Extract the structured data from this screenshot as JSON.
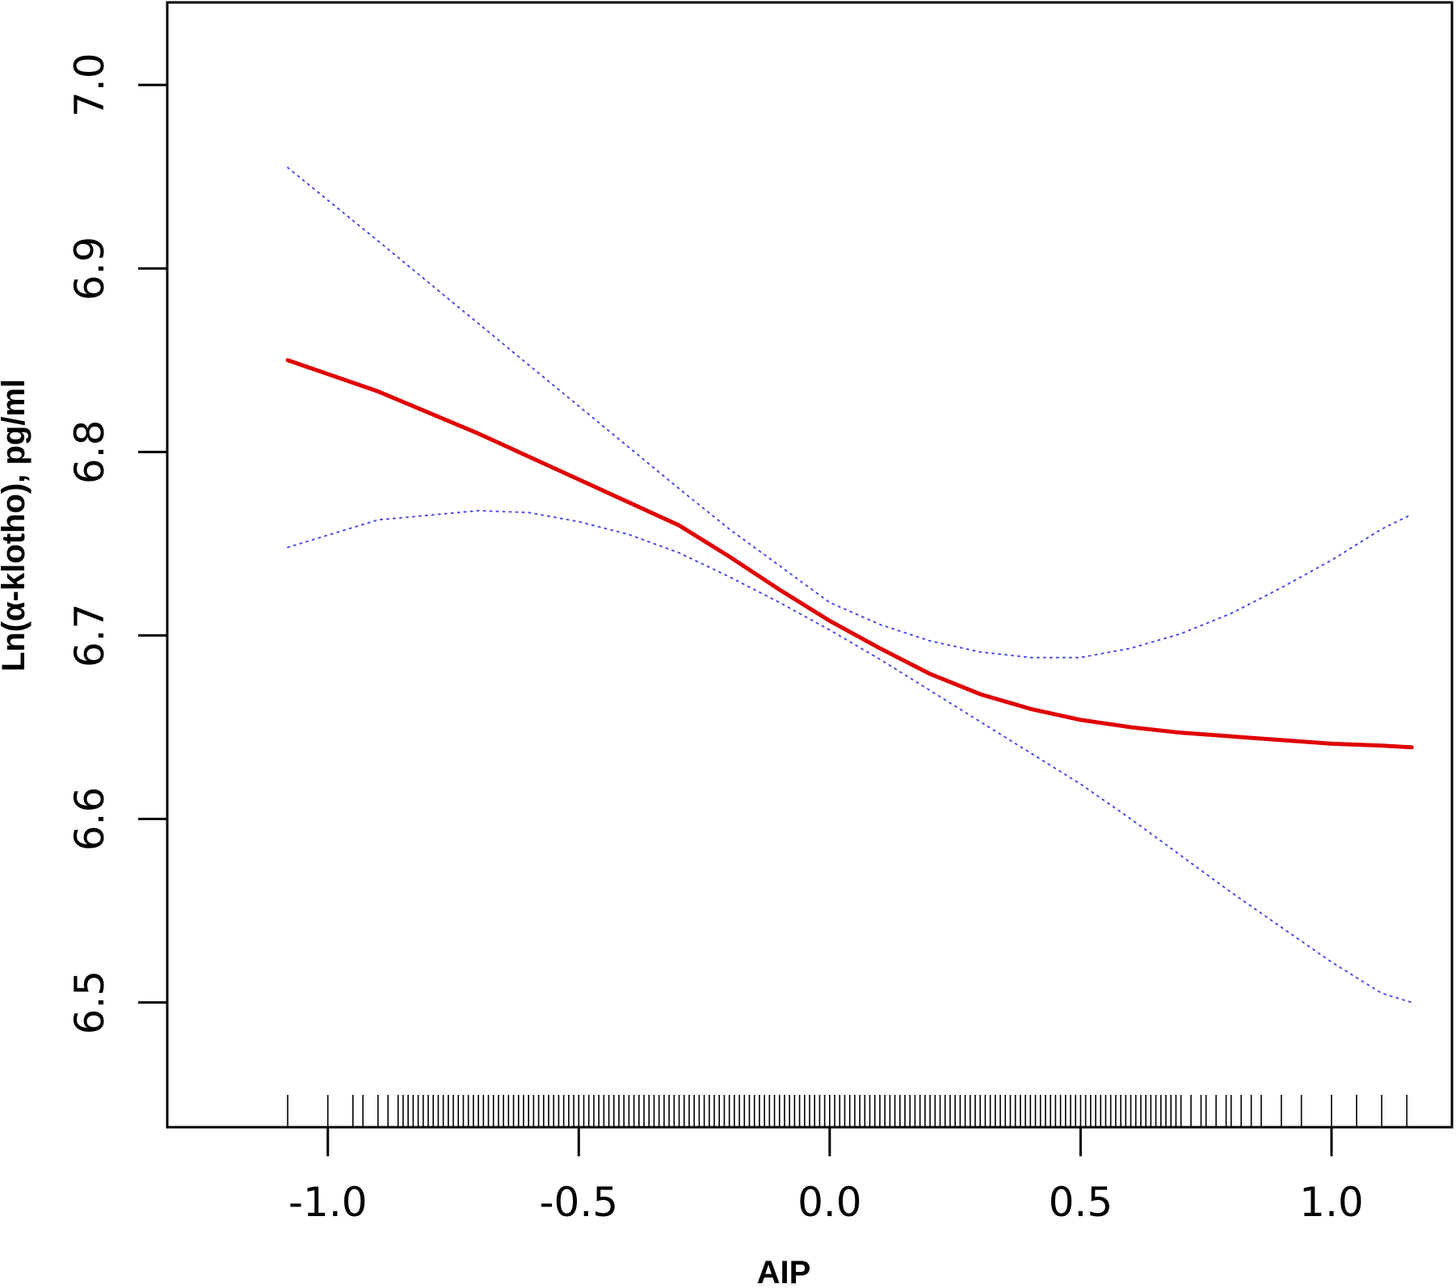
{
  "chart_data": {
    "type": "line",
    "title": "",
    "xlabel": "AIP",
    "ylabel": "Ln(α-klotho), pg/ml",
    "xlim": [
      -1.32,
      1.24
    ],
    "ylim": [
      6.432,
      7.045
    ],
    "x_ticks": [
      -1.0,
      -0.5,
      0.0,
      0.5,
      1.0
    ],
    "x_tick_labels": [
      "-1.0",
      "-0.5",
      "0.0",
      "0.5",
      "1.0"
    ],
    "y_ticks": [
      6.5,
      6.6,
      6.7,
      6.8,
      6.9,
      7.0
    ],
    "y_tick_labels": [
      "6.5",
      "6.6",
      "6.7",
      "6.8",
      "6.9",
      "7.0"
    ],
    "grid": false,
    "series": [
      {
        "role": "estimate",
        "color": "#e00000",
        "style": "solid",
        "x": [
          -1.08,
          -0.9,
          -0.7,
          -0.5,
          -0.3,
          -0.2,
          -0.1,
          0.0,
          0.1,
          0.2,
          0.3,
          0.4,
          0.5,
          0.6,
          0.7,
          0.8,
          0.9,
          1.0,
          1.1,
          1.16
        ],
        "y": [
          6.85,
          6.833,
          6.81,
          6.785,
          6.76,
          6.743,
          6.725,
          6.708,
          6.693,
          6.679,
          6.668,
          6.66,
          6.654,
          6.65,
          6.647,
          6.645,
          6.643,
          6.641,
          6.64,
          6.639
        ]
      },
      {
        "role": "upper-ci",
        "color": "#4a4ae6",
        "style": "dotted",
        "x": [
          -1.08,
          -0.9,
          -0.7,
          -0.5,
          -0.3,
          -0.2,
          -0.1,
          0.0,
          0.1,
          0.2,
          0.3,
          0.4,
          0.5,
          0.6,
          0.7,
          0.8,
          0.9,
          1.0,
          1.1,
          1.16
        ],
        "y": [
          6.955,
          6.915,
          6.87,
          6.825,
          6.78,
          6.758,
          6.738,
          6.718,
          6.706,
          6.697,
          6.691,
          6.688,
          6.688,
          6.693,
          6.701,
          6.712,
          6.726,
          6.741,
          6.758,
          6.766
        ]
      },
      {
        "role": "lower-ci",
        "color": "#4a4ae6",
        "style": "dotted",
        "x": [
          -1.08,
          -0.9,
          -0.7,
          -0.6,
          -0.5,
          -0.4,
          -0.3,
          -0.2,
          -0.1,
          0.0,
          0.1,
          0.2,
          0.3,
          0.4,
          0.5,
          0.6,
          0.7,
          0.8,
          0.9,
          1.0,
          1.1,
          1.16
        ],
        "y": [
          6.748,
          6.763,
          6.768,
          6.767,
          6.762,
          6.755,
          6.745,
          6.732,
          6.718,
          6.703,
          6.687,
          6.67,
          6.653,
          6.636,
          6.619,
          6.6,
          6.58,
          6.56,
          6.541,
          6.522,
          6.505,
          6.5
        ]
      }
    ],
    "rug": [
      -1.08,
      -1.0,
      -0.95,
      -0.93,
      -0.9,
      -0.88,
      -0.86,
      -0.85,
      -0.84,
      -0.83,
      -0.82,
      -0.81,
      -0.8,
      -0.79,
      -0.78,
      -0.77,
      -0.76,
      -0.75,
      -0.74,
      -0.73,
      -0.72,
      -0.71,
      -0.7,
      -0.69,
      -0.68,
      -0.67,
      -0.66,
      -0.65,
      -0.64,
      -0.63,
      -0.62,
      -0.61,
      -0.6,
      -0.59,
      -0.58,
      -0.57,
      -0.56,
      -0.55,
      -0.54,
      -0.53,
      -0.52,
      -0.51,
      -0.5,
      -0.49,
      -0.48,
      -0.47,
      -0.46,
      -0.45,
      -0.44,
      -0.43,
      -0.42,
      -0.41,
      -0.4,
      -0.39,
      -0.38,
      -0.37,
      -0.36,
      -0.35,
      -0.34,
      -0.33,
      -0.32,
      -0.31,
      -0.3,
      -0.29,
      -0.28,
      -0.27,
      -0.26,
      -0.25,
      -0.24,
      -0.23,
      -0.22,
      -0.21,
      -0.2,
      -0.19,
      -0.18,
      -0.17,
      -0.16,
      -0.15,
      -0.14,
      -0.13,
      -0.12,
      -0.11,
      -0.1,
      -0.09,
      -0.08,
      -0.07,
      -0.06,
      -0.05,
      -0.04,
      -0.03,
      -0.02,
      -0.01,
      0.0,
      0.01,
      0.02,
      0.03,
      0.04,
      0.05,
      0.06,
      0.07,
      0.08,
      0.09,
      0.1,
      0.11,
      0.12,
      0.13,
      0.14,
      0.15,
      0.16,
      0.17,
      0.18,
      0.19,
      0.2,
      0.21,
      0.22,
      0.23,
      0.24,
      0.25,
      0.26,
      0.27,
      0.28,
      0.29,
      0.3,
      0.31,
      0.32,
      0.33,
      0.34,
      0.35,
      0.36,
      0.37,
      0.38,
      0.39,
      0.4,
      0.41,
      0.42,
      0.43,
      0.44,
      0.45,
      0.46,
      0.47,
      0.48,
      0.49,
      0.5,
      0.51,
      0.52,
      0.53,
      0.54,
      0.55,
      0.56,
      0.57,
      0.58,
      0.59,
      0.6,
      0.61,
      0.62,
      0.63,
      0.64,
      0.65,
      0.66,
      0.67,
      0.68,
      0.69,
      0.7,
      0.72,
      0.74,
      0.75,
      0.77,
      0.79,
      0.8,
      0.82,
      0.84,
      0.86,
      0.9,
      0.94,
      1.0,
      1.05,
      1.1,
      1.15
    ]
  }
}
